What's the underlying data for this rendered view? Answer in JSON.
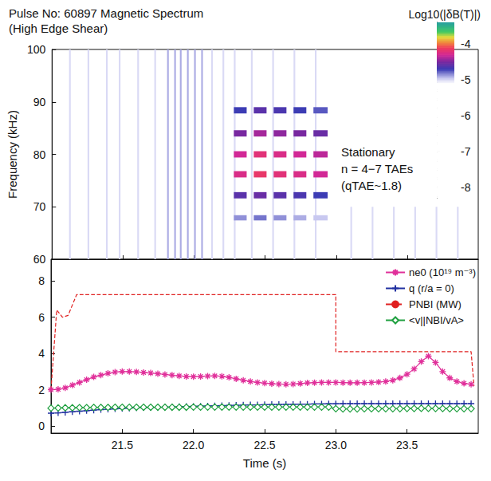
{
  "chart_data": [
    {
      "type": "heatmap",
      "title": "Pulse No: 60897 Magnetic Spectrum",
      "subtitle": "(High Edge Shear)",
      "ylabel": "Frequency (kHz)",
      "xlim": [
        21.0,
        24.0
      ],
      "xticks": [
        21.5,
        22,
        22.5,
        23,
        23.5
      ],
      "ylim": [
        60,
        100
      ],
      "yticks": [
        60,
        70,
        80,
        90,
        100
      ],
      "tick_labels": "y",
      "annotation": [
        "Stationary",
        "n = 4−7 TAEs",
        "(qTAE~1.8)"
      ],
      "colorbar": {
        "title": "Log10(|δB(T)|)",
        "range": [
          -8.3,
          -3.4
        ],
        "ticks": [
          -8,
          -7,
          -6,
          -5,
          -4
        ],
        "levels": [
          -8.3,
          -5.1,
          -4.95,
          -4.7,
          -4.5,
          -4.3,
          -4.1,
          -3.95,
          -3.8,
          -3.65,
          -3.4
        ],
        "colors": [
          "#ffffff",
          "#ffffff",
          "#c8c8f0",
          "#3c3cb4",
          "#7828a0",
          "#d22896",
          "#f03c5a",
          "#f08c3c",
          "#e6dc3c",
          "#3cc864",
          "#28a0a0"
        ]
      },
      "cells": [
        {
          "t": [
            21.12,
            21.132
          ],
          "f": [
            60,
            100
          ],
          "value": -5.0
        },
        {
          "t": [
            21.25,
            21.262
          ],
          "f": [
            60,
            100
          ],
          "value": -5.0
        },
        {
          "t": [
            21.38,
            21.392
          ],
          "f": [
            60,
            100
          ],
          "value": -5.0
        },
        {
          "t": [
            21.47,
            21.482
          ],
          "f": [
            60,
            100
          ],
          "value": -5.0
        },
        {
          "t": [
            21.6,
            21.612
          ],
          "f": [
            60,
            100
          ],
          "value": -5.0
        },
        {
          "t": [
            21.72,
            21.732
          ],
          "f": [
            60,
            100
          ],
          "value": -5.0
        },
        {
          "t": [
            21.81,
            21.822
          ],
          "f": [
            60,
            100
          ],
          "value": -4.9
        },
        {
          "t": [
            21.86,
            21.872
          ],
          "f": [
            60,
            100
          ],
          "value": -4.9
        },
        {
          "t": [
            21.9,
            21.912
          ],
          "f": [
            60,
            100
          ],
          "value": -4.9
        },
        {
          "t": [
            21.95,
            21.962
          ],
          "f": [
            60,
            100
          ],
          "value": -4.9
        },
        {
          "t": [
            22.0,
            22.012
          ],
          "f": [
            60,
            100
          ],
          "value": -4.9
        },
        {
          "t": [
            22.05,
            22.062
          ],
          "f": [
            60,
            100
          ],
          "value": -4.9
        },
        {
          "t": [
            22.12,
            22.132
          ],
          "f": [
            60,
            100
          ],
          "value": -5.0
        },
        {
          "t": [
            22.2,
            22.212
          ],
          "f": [
            60,
            100
          ],
          "value": -5.0
        },
        {
          "t": [
            22.28,
            22.292
          ],
          "f": [
            60,
            100
          ],
          "value": -5.0
        },
        {
          "t": [
            22.4,
            22.412
          ],
          "f": [
            60,
            100
          ],
          "value": -5.0
        },
        {
          "t": [
            22.55,
            22.562
          ],
          "f": [
            60,
            100
          ],
          "value": -5.0
        },
        {
          "t": [
            22.7,
            22.712
          ],
          "f": [
            60,
            100
          ],
          "value": -5.0
        },
        {
          "t": [
            22.85,
            22.862
          ],
          "f": [
            60,
            100
          ],
          "value": -5.0
        },
        {
          "t": [
            23.1,
            23.112
          ],
          "f": [
            60,
            70
          ],
          "value": -5.0
        },
        {
          "t": [
            23.25,
            23.262
          ],
          "f": [
            60,
            70
          ],
          "value": -5.0
        },
        {
          "t": [
            23.4,
            23.412
          ],
          "f": [
            60,
            70
          ],
          "value": -5.0
        },
        {
          "t": [
            23.55,
            23.562
          ],
          "f": [
            60,
            70
          ],
          "value": -5.0
        },
        {
          "t": [
            23.7,
            23.712
          ],
          "f": [
            60,
            70
          ],
          "value": -5.0
        },
        {
          "t": [
            23.85,
            23.862
          ],
          "f": [
            60,
            70
          ],
          "value": -5.0
        },
        {
          "t": [
            22.28,
            22.37
          ],
          "f": [
            87.8,
            89.0
          ],
          "value": -4.7
        },
        {
          "t": [
            22.42,
            22.51
          ],
          "f": [
            87.8,
            89.0
          ],
          "value": -4.6
        },
        {
          "t": [
            22.56,
            22.65
          ],
          "f": [
            87.8,
            89.0
          ],
          "value": -4.65
        },
        {
          "t": [
            22.7,
            22.79
          ],
          "f": [
            87.8,
            89.0
          ],
          "value": -4.7
        },
        {
          "t": [
            22.84,
            22.94
          ],
          "f": [
            87.8,
            89.0
          ],
          "value": -4.75
        },
        {
          "t": [
            22.28,
            22.37
          ],
          "f": [
            83.4,
            84.6
          ],
          "value": -4.5
        },
        {
          "t": [
            22.42,
            22.51
          ],
          "f": [
            83.4,
            84.6
          ],
          "value": -4.4
        },
        {
          "t": [
            22.56,
            22.65
          ],
          "f": [
            83.4,
            84.6
          ],
          "value": -4.45
        },
        {
          "t": [
            22.7,
            22.79
          ],
          "f": [
            83.4,
            84.6
          ],
          "value": -4.5
        },
        {
          "t": [
            22.84,
            22.94
          ],
          "f": [
            83.4,
            84.6
          ],
          "value": -4.55
        },
        {
          "t": [
            22.28,
            22.37
          ],
          "f": [
            79.4,
            80.6
          ],
          "value": -4.3
        },
        {
          "t": [
            22.42,
            22.51
          ],
          "f": [
            79.4,
            80.6
          ],
          "value": -4.2
        },
        {
          "t": [
            22.56,
            22.65
          ],
          "f": [
            79.4,
            80.6
          ],
          "value": -4.25
        },
        {
          "t": [
            22.7,
            22.79
          ],
          "f": [
            79.4,
            80.6
          ],
          "value": -4.3
        },
        {
          "t": [
            22.84,
            22.94
          ],
          "f": [
            79.4,
            80.6
          ],
          "value": -4.35
        },
        {
          "t": [
            22.28,
            22.37
          ],
          "f": [
            75.6,
            76.8
          ],
          "value": -4.25
        },
        {
          "t": [
            22.42,
            22.51
          ],
          "f": [
            75.6,
            76.8
          ],
          "value": -4.15
        },
        {
          "t": [
            22.56,
            22.65
          ],
          "f": [
            75.6,
            76.8
          ],
          "value": -4.2
        },
        {
          "t": [
            22.7,
            22.79
          ],
          "f": [
            75.6,
            76.8
          ],
          "value": -4.25
        },
        {
          "t": [
            22.84,
            22.94
          ],
          "f": [
            75.6,
            76.8
          ],
          "value": -4.3
        },
        {
          "t": [
            22.28,
            22.37
          ],
          "f": [
            71.6,
            72.8
          ],
          "value": -4.6
        },
        {
          "t": [
            22.42,
            22.51
          ],
          "f": [
            71.6,
            72.8
          ],
          "value": -4.55
        },
        {
          "t": [
            22.56,
            22.65
          ],
          "f": [
            71.6,
            72.8
          ],
          "value": -4.6
        },
        {
          "t": [
            22.7,
            22.79
          ],
          "f": [
            71.6,
            72.8
          ],
          "value": -4.65
        },
        {
          "t": [
            22.84,
            22.94
          ],
          "f": [
            71.6,
            72.8
          ],
          "value": -4.7
        },
        {
          "t": [
            22.28,
            22.37
          ],
          "f": [
            67.4,
            68.4
          ],
          "value": -4.85
        },
        {
          "t": [
            22.42,
            22.51
          ],
          "f": [
            67.4,
            68.4
          ],
          "value": -4.8
        },
        {
          "t": [
            22.56,
            22.65
          ],
          "f": [
            67.4,
            68.4
          ],
          "value": -4.85
        },
        {
          "t": [
            22.7,
            22.79
          ],
          "f": [
            67.4,
            68.4
          ],
          "value": -4.9
        },
        {
          "t": [
            22.84,
            22.94
          ],
          "f": [
            67.4,
            68.4
          ],
          "value": -4.95
        }
      ]
    },
    {
      "type": "line",
      "xlabel": "Time (s)",
      "xlim": [
        21.0,
        24.0
      ],
      "xticks": [
        21.5,
        {
          "value": 22,
          "label": "22.0"
        },
        22.5,
        {
          "value": 23,
          "label": "23.0"
        },
        23.5
      ],
      "ylim": [
        -0.4,
        9.2
      ],
      "yticks": [
        0,
        2,
        4,
        6,
        8
      ],
      "legend": "upper right",
      "x": [
        21.0,
        21.05,
        21.1,
        21.15,
        21.2,
        21.25,
        21.3,
        21.35,
        21.4,
        21.45,
        21.5,
        21.55,
        21.6,
        21.65,
        21.7,
        21.75,
        21.8,
        21.85,
        21.9,
        21.95,
        22.0,
        22.05,
        22.1,
        22.15,
        22.2,
        22.25,
        22.3,
        22.35,
        22.4,
        22.45,
        22.5,
        22.55,
        22.6,
        22.65,
        22.7,
        22.75,
        22.8,
        22.85,
        22.9,
        22.95,
        23.0,
        23.05,
        23.1,
        23.15,
        23.2,
        23.25,
        23.3,
        23.35,
        23.4,
        23.45,
        23.5,
        23.55,
        23.6,
        23.65,
        23.7,
        23.75,
        23.8,
        23.85,
        23.9,
        23.95
      ],
      "series": [
        {
          "name": "ne0 (10¹⁹ m⁻³)",
          "color": "#e0309a",
          "marker": "asterisk",
          "line_style": "solid",
          "values": [
            2.0,
            2.02,
            2.1,
            2.25,
            2.4,
            2.55,
            2.7,
            2.8,
            2.9,
            2.97,
            3.0,
            3.0,
            2.98,
            2.95,
            2.92,
            2.88,
            2.84,
            2.8,
            2.76,
            2.73,
            2.72,
            2.73,
            2.75,
            2.76,
            2.74,
            2.68,
            2.6,
            2.52,
            2.45,
            2.4,
            2.36,
            2.33,
            2.31,
            2.3,
            2.31,
            2.34,
            2.37,
            2.39,
            2.4,
            2.4,
            2.4,
            2.39,
            2.38,
            2.38,
            2.39,
            2.4,
            2.42,
            2.45,
            2.52,
            2.65,
            2.85,
            3.15,
            3.55,
            3.85,
            3.5,
            3.0,
            2.65,
            2.45,
            2.35,
            2.3
          ]
        },
        {
          "name": "q (r/a = 0)",
          "color": "#2030a0",
          "marker": "plus",
          "line_style": "solid",
          "values": [
            0.7,
            0.72,
            0.75,
            0.78,
            0.81,
            0.84,
            0.87,
            0.9,
            0.92,
            0.94,
            0.96,
            0.98,
            1.0,
            1.01,
            1.02,
            1.03,
            1.04,
            1.05,
            1.06,
            1.07,
            1.08,
            1.09,
            1.1,
            1.11,
            1.12,
            1.13,
            1.14,
            1.15,
            1.16,
            1.16,
            1.17,
            1.18,
            1.18,
            1.19,
            1.19,
            1.2,
            1.2,
            1.21,
            1.21,
            1.22,
            1.22,
            1.23,
            1.23,
            1.23,
            1.23,
            1.23,
            1.23,
            1.23,
            1.23,
            1.23,
            1.23,
            1.23,
            1.23,
            1.23,
            1.23,
            1.23,
            1.23,
            1.23,
            1.23,
            1.23
          ]
        },
        {
          "name": "PNBI (MW)",
          "color": "#e02020",
          "marker": "none",
          "line_style": "dashed",
          "x": [
            21.0,
            21.04,
            21.08,
            21.12,
            21.18,
            23.0,
            23.0,
            23.95,
            23.97
          ],
          "values": [
            2.0,
            6.4,
            6.0,
            6.1,
            7.25,
            7.25,
            4.1,
            4.1,
            2.2
          ]
        },
        {
          "name": "<v||NBI/vA>",
          "color": "#20a040",
          "marker": "diamond",
          "line_style": "solid",
          "values": [
            0.98,
            0.99,
            1.0,
            1.0,
            1.01,
            1.01,
            1.02,
            1.02,
            1.02,
            1.03,
            1.03,
            1.03,
            1.03,
            1.03,
            1.03,
            1.03,
            1.03,
            1.03,
            1.03,
            1.03,
            1.04,
            1.04,
            1.04,
            1.04,
            1.04,
            1.04,
            1.04,
            1.04,
            1.04,
            1.04,
            1.04,
            1.04,
            1.04,
            1.04,
            1.04,
            1.04,
            1.04,
            1.04,
            1.04,
            1.04,
            0.95,
            0.94,
            0.94,
            0.94,
            0.95,
            0.95,
            0.95,
            0.95,
            0.95,
            0.95,
            0.96,
            0.96,
            0.97,
            0.97,
            0.96,
            0.96,
            0.95,
            0.95,
            0.95,
            0.95
          ]
        }
      ]
    }
  ]
}
